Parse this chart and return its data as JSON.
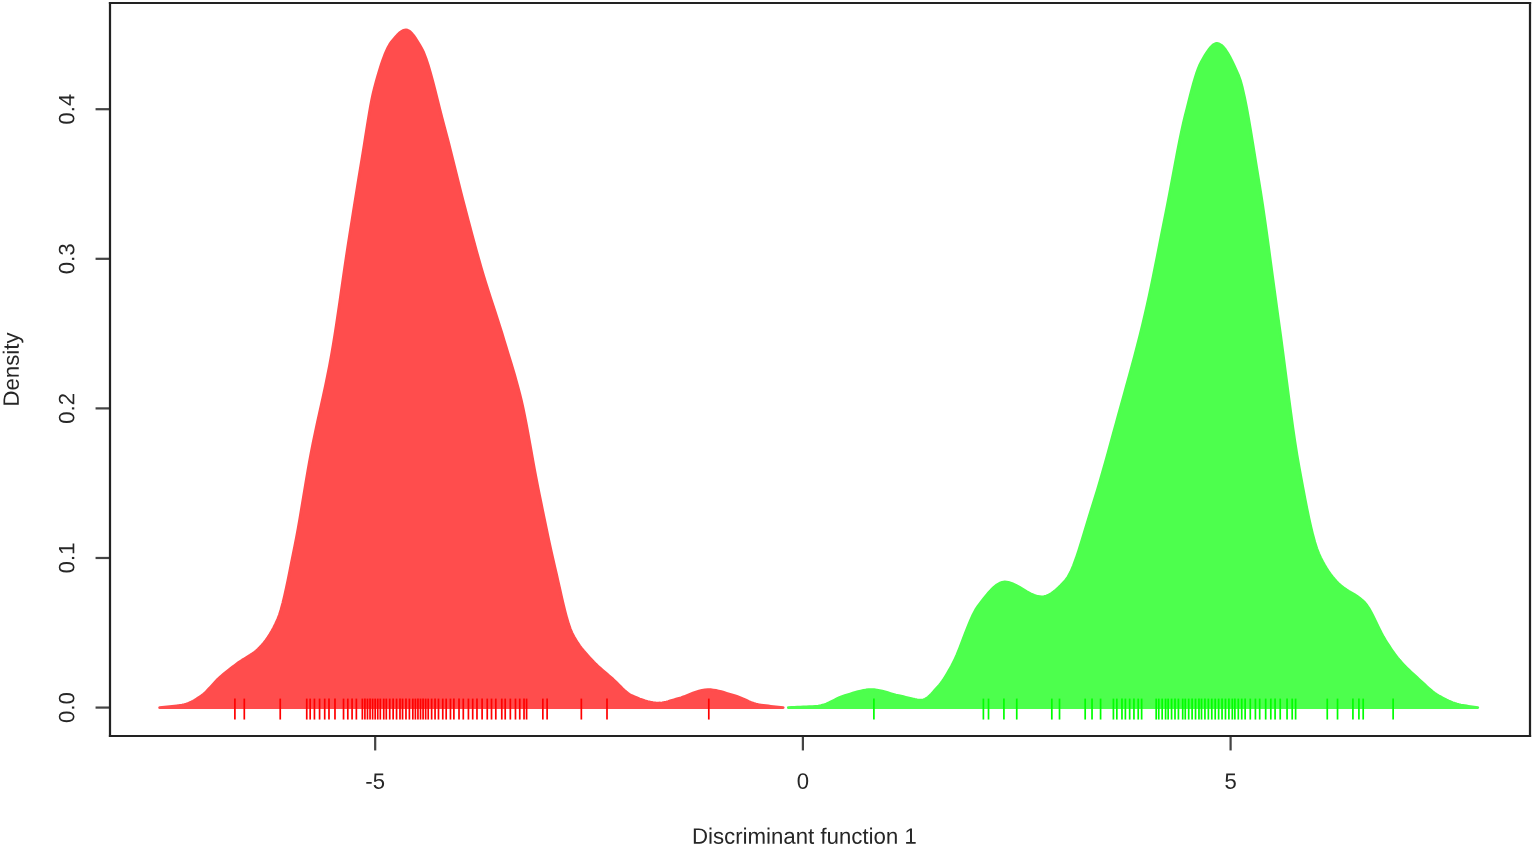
{
  "chart_data": {
    "type": "area",
    "xlabel": "Discriminant function 1",
    "ylabel": "Density",
    "xlim": [
      -8.1,
      8.5
    ],
    "ylim": [
      -0.019,
      0.471
    ],
    "xticks": [
      -5,
      0,
      5
    ],
    "yticks": [
      {
        "value": 0,
        "label": "0.0"
      },
      0.1,
      0.2,
      0.3,
      0.4
    ],
    "series": [
      {
        "color": "#ff4d4d",
        "x": [
          -7.52,
          -7.23,
          -7.03,
          -6.82,
          -6.6,
          -6.37,
          -6.14,
          -5.94,
          -5.75,
          -5.51,
          -5.32,
          -5.16,
          -5.01,
          -4.81,
          -4.64,
          -4.46,
          -4.19,
          -3.95,
          -3.76,
          -3.49,
          -3.29,
          -3.1,
          -2.9,
          -2.7,
          -2.47,
          -2.22,
          -2.0,
          -1.69,
          -1.46,
          -1.11,
          -0.8,
          -0.52,
          -0.23
        ],
        "values": [
          0,
          0.002,
          0.008,
          0.02,
          0.03,
          0.039,
          0.059,
          0.108,
          0.17,
          0.236,
          0.308,
          0.365,
          0.414,
          0.445,
          0.453,
          0.441,
          0.388,
          0.334,
          0.294,
          0.245,
          0.205,
          0.148,
          0.094,
          0.05,
          0.032,
          0.019,
          0.008,
          0.003,
          0.006,
          0.012,
          0.008,
          0.002,
          0
        ]
      },
      {
        "color": "#4dff4d",
        "x": [
          -0.17,
          0.18,
          0.49,
          0.8,
          1.12,
          1.39,
          1.58,
          1.74,
          2.05,
          2.36,
          2.79,
          3.07,
          3.38,
          3.69,
          4.0,
          4.24,
          4.47,
          4.66,
          4.84,
          5.09,
          5.33,
          5.56,
          5.8,
          6.03,
          6.26,
          6.57,
          6.81,
          6.97,
          7.2,
          7.43,
          7.67,
          7.89
        ],
        "values": [
          0,
          0.001,
          0.008,
          0.012,
          0.008,
          0.005,
          0.014,
          0.028,
          0.068,
          0.084,
          0.074,
          0.085,
          0.134,
          0.196,
          0.263,
          0.33,
          0.396,
          0.432,
          0.444,
          0.423,
          0.352,
          0.259,
          0.161,
          0.103,
          0.083,
          0.07,
          0.045,
          0.032,
          0.019,
          0.008,
          0.002,
          0
        ]
      },
      {
        "type": "bar",
        "color": "#ff0000",
        "x": [
          -6.64,
          -6.53,
          -6.11,
          -5.8,
          -5.76,
          -5.71,
          -5.65,
          -5.59,
          -5.54,
          -5.47,
          -5.37,
          -5.32,
          -5.27,
          -5.22,
          -5.15,
          -5.12,
          -5.09,
          -5.06,
          -5.03,
          -5.0,
          -4.97,
          -4.94,
          -4.9,
          -4.87,
          -4.83,
          -4.79,
          -4.75,
          -4.71,
          -4.68,
          -4.64,
          -4.6,
          -4.56,
          -4.53,
          -4.5,
          -4.47,
          -4.44,
          -4.41,
          -4.38,
          -4.34,
          -4.3,
          -4.26,
          -4.21,
          -4.17,
          -4.12,
          -4.08,
          -4.02,
          -3.97,
          -3.91,
          -3.86,
          -3.81,
          -3.75,
          -3.69,
          -3.64,
          -3.59,
          -3.52,
          -3.48,
          -3.42,
          -3.36,
          -3.31,
          -3.26,
          -3.23,
          -3.04,
          -2.99,
          -2.59,
          -2.29,
          -1.1
        ],
        "base": [
          -0.008,
          -0.008,
          -0.008,
          -0.008,
          -0.008,
          -0.008,
          -0.008,
          -0.008,
          -0.008,
          -0.008,
          -0.008,
          -0.008,
          -0.008,
          -0.008,
          -0.008,
          -0.008,
          -0.008,
          -0.008,
          -0.008,
          -0.008,
          -0.008,
          -0.008,
          -0.008,
          -0.008,
          -0.008,
          -0.008,
          -0.008,
          -0.008,
          -0.008,
          -0.008,
          -0.008,
          -0.008,
          -0.008,
          -0.008,
          -0.008,
          -0.008,
          -0.008,
          -0.008,
          -0.008,
          -0.008,
          -0.008,
          -0.008,
          -0.008,
          -0.008,
          -0.008,
          -0.008,
          -0.008,
          -0.008,
          -0.008,
          -0.008,
          -0.008,
          -0.008,
          -0.008,
          -0.008,
          -0.008,
          -0.008,
          -0.008,
          -0.008,
          -0.008,
          -0.008,
          -0.008,
          -0.008,
          -0.008,
          -0.008,
          -0.008,
          -0.008
        ],
        "values": [
          0.014,
          0.014,
          0.014,
          0.014,
          0.014,
          0.014,
          0.014,
          0.014,
          0.014,
          0.014,
          0.014,
          0.014,
          0.014,
          0.014,
          0.014,
          0.014,
          0.014,
          0.014,
          0.014,
          0.014,
          0.014,
          0.014,
          0.014,
          0.014,
          0.014,
          0.014,
          0.014,
          0.014,
          0.014,
          0.014,
          0.014,
          0.014,
          0.014,
          0.014,
          0.014,
          0.014,
          0.014,
          0.014,
          0.014,
          0.014,
          0.014,
          0.014,
          0.014,
          0.014,
          0.014,
          0.014,
          0.014,
          0.014,
          0.014,
          0.014,
          0.014,
          0.014,
          0.014,
          0.014,
          0.014,
          0.014,
          0.014,
          0.014,
          0.014,
          0.014,
          0.014,
          0.014,
          0.014,
          0.014,
          0.014,
          0.014
        ]
      },
      {
        "type": "bar",
        "color": "#00ff00",
        "x": [
          0.83,
          2.11,
          2.17,
          2.35,
          2.5,
          2.91,
          3.0,
          3.3,
          3.38,
          3.48,
          3.63,
          3.67,
          3.73,
          3.77,
          3.82,
          3.87,
          3.92,
          3.96,
          4.13,
          4.16,
          4.2,
          4.24,
          4.27,
          4.31,
          4.35,
          4.39,
          4.44,
          4.47,
          4.51,
          4.55,
          4.59,
          4.63,
          4.66,
          4.7,
          4.74,
          4.78,
          4.82,
          4.86,
          4.9,
          4.94,
          4.98,
          5.02,
          5.05,
          5.09,
          5.13,
          5.17,
          5.23,
          5.29,
          5.34,
          5.41,
          5.47,
          5.52,
          5.58,
          5.66,
          5.72,
          5.76,
          6.13,
          6.25,
          6.43,
          6.5,
          6.55,
          6.9
        ],
        "base": [
          -0.008,
          -0.008,
          -0.008,
          -0.008,
          -0.008,
          -0.008,
          -0.008,
          -0.008,
          -0.008,
          -0.008,
          -0.008,
          -0.008,
          -0.008,
          -0.008,
          -0.008,
          -0.008,
          -0.008,
          -0.008,
          -0.008,
          -0.008,
          -0.008,
          -0.008,
          -0.008,
          -0.008,
          -0.008,
          -0.008,
          -0.008,
          -0.008,
          -0.008,
          -0.008,
          -0.008,
          -0.008,
          -0.008,
          -0.008,
          -0.008,
          -0.008,
          -0.008,
          -0.008,
          -0.008,
          -0.008,
          -0.008,
          -0.008,
          -0.008,
          -0.008,
          -0.008,
          -0.008,
          -0.008,
          -0.008,
          -0.008,
          -0.008,
          -0.008,
          -0.008,
          -0.008,
          -0.008,
          -0.008,
          -0.008,
          -0.008,
          -0.008,
          -0.008,
          -0.008,
          -0.008,
          -0.008
        ],
        "values": [
          0.014,
          0.014,
          0.014,
          0.014,
          0.014,
          0.014,
          0.014,
          0.014,
          0.014,
          0.014,
          0.014,
          0.014,
          0.014,
          0.014,
          0.014,
          0.014,
          0.014,
          0.014,
          0.014,
          0.014,
          0.014,
          0.014,
          0.014,
          0.014,
          0.014,
          0.014,
          0.014,
          0.014,
          0.014,
          0.014,
          0.014,
          0.014,
          0.014,
          0.014,
          0.014,
          0.014,
          0.014,
          0.014,
          0.014,
          0.014,
          0.014,
          0.014,
          0.014,
          0.014,
          0.014,
          0.014,
          0.014,
          0.014,
          0.014,
          0.014,
          0.014,
          0.014,
          0.014,
          0.014,
          0.014,
          0.014,
          0.014,
          0.014,
          0.014,
          0.014,
          0.014,
          0.014
        ]
      }
    ]
  }
}
